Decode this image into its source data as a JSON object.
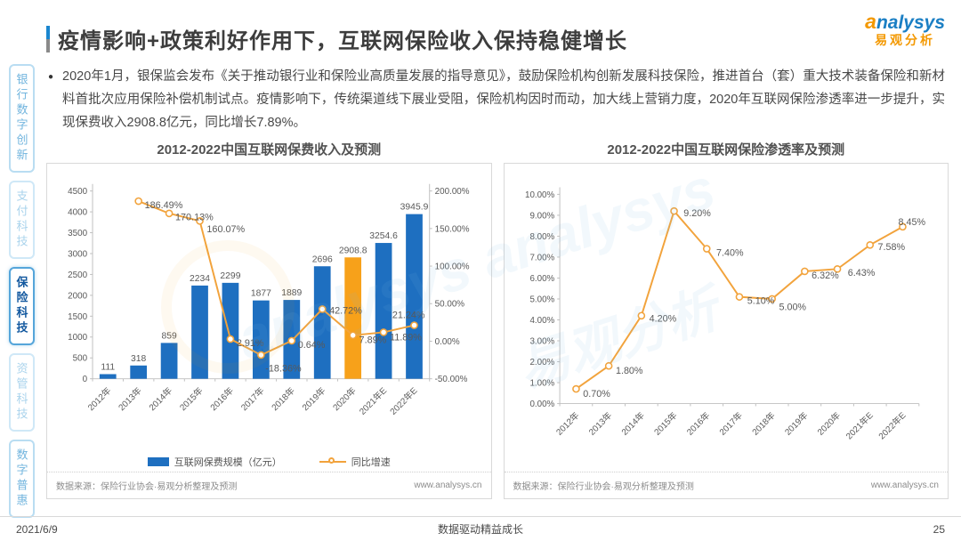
{
  "header": {
    "title": "疫情影响+政策利好作用下，互联网保险收入保持稳健增长",
    "logo": {
      "en": "analysys",
      "cn": "易观分析"
    }
  },
  "sidebar": {
    "items": [
      {
        "label": "银行数字创新",
        "active": false,
        "tone": "normal"
      },
      {
        "label": "支付科技",
        "active": false,
        "tone": "pale"
      },
      {
        "label": "保险科技",
        "active": true,
        "tone": "active"
      },
      {
        "label": "资管科技",
        "active": false,
        "tone": "pale"
      },
      {
        "label": "数字普惠",
        "active": false,
        "tone": "normal"
      }
    ]
  },
  "intro": {
    "bullet": "●",
    "text": "2020年1月，银保监会发布《关于推动银行业和保险业高质量发展的指导意见》，鼓励保险机构创新发展科技保险，推进首台（套）重大技术装备保险和新材料首批次应用保险补偿机制试点。疫情影响下，传统渠道线下展业受阻，保险机构因时而动，加大线上营销力度，2020年互联网保险渗透率进一步提升，实现保费收入2908.8亿元，同比增长7.89%。"
  },
  "chart_data": [
    {
      "type": "bar",
      "title": "2012-2022中国互联网保费收入及预测",
      "categories": [
        "2012年",
        "2013年",
        "2014年",
        "2015年",
        "2016年",
        "2017年",
        "2018年",
        "2019年",
        "2020年",
        "2021年E",
        "2022年E"
      ],
      "series": [
        {
          "name": "互联网保费规模（亿元）",
          "kind": "bar",
          "axis": "left",
          "values": [
            111,
            318,
            859,
            2234,
            2299,
            1877,
            1889,
            2696,
            2908.8,
            3254.6,
            3945.9
          ],
          "labels": [
            "111",
            "318",
            "859",
            "2234",
            "2299",
            "1877",
            "1889",
            "2696",
            "2908.8",
            "3254.6",
            "3945.9"
          ],
          "color": "#1e6fc0",
          "highlight_index": 8,
          "highlight_color": "#f7a11a"
        },
        {
          "name": "同比增速",
          "kind": "line",
          "axis": "right",
          "values": [
            null,
            186.49,
            170.13,
            160.07,
            2.91,
            -18.36,
            0.64,
            42.72,
            7.89,
            11.89,
            21.24
          ],
          "labels": [
            null,
            "186.49%",
            "170.13%",
            "160.07%",
            "2.91%",
            "-18.36%",
            "0.64%",
            "42.72%",
            "7.89%",
            "11.89%",
            "21.24%"
          ],
          "label_offsets": [
            null,
            [
              7,
              4
            ],
            [
              7,
              4
            ],
            [
              8,
              9
            ],
            [
              7,
              4
            ],
            [
              5,
              15
            ],
            [
              7,
              4
            ],
            [
              8,
              1
            ],
            [
              7,
              5
            ],
            [
              7,
              5
            ],
            [
              -25,
              -12
            ]
          ],
          "color": "#f2a33c"
        }
      ],
      "axis_left": {
        "min": 0,
        "max": 4500,
        "tick_values": [
          0,
          500,
          1000,
          1500,
          2000,
          2500,
          3000,
          3500,
          4000,
          4500
        ],
        "tick_labels": [
          "0",
          "500",
          "1000",
          "1500",
          "2000",
          "2500",
          "3000",
          "3500",
          "4000",
          "4500"
        ]
      },
      "axis_right": {
        "min": -50,
        "max": 200,
        "tick_values": [
          -50,
          0,
          50,
          100,
          150,
          200
        ],
        "tick_labels": [
          "-50.00%",
          "0.00%",
          "50.00%",
          "100.00%",
          "150.00%",
          "200.00%"
        ]
      },
      "legend": [
        {
          "label": "互联网保费规模（亿元）",
          "kind": "bar",
          "color": "#1e6fc0"
        },
        {
          "label": "同比增速",
          "kind": "line",
          "color": "#f2a33c"
        }
      ],
      "grid": false,
      "legend_position": "bottom"
    },
    {
      "type": "line",
      "title": "2012-2022中国互联网保险渗透率及预测",
      "categories": [
        "2012年",
        "2013年",
        "2014年",
        "2015年",
        "2016年",
        "2017年",
        "2018年",
        "2019年",
        "2020年",
        "2021年E",
        "2022年E"
      ],
      "series": [
        {
          "kind": "line",
          "axis": "left",
          "values": [
            0.7,
            1.8,
            4.2,
            9.2,
            7.4,
            5.1,
            5.0,
            6.32,
            6.43,
            7.58,
            8.45
          ],
          "labels": [
            "0.70%",
            "1.80%",
            "4.20%",
            "9.20%",
            "7.40%",
            "5.10%",
            "5.00%",
            "6.32%",
            "6.43%",
            "7.58%",
            "8.45%"
          ],
          "label_offsets": [
            [
              8,
              5
            ],
            [
              8,
              5
            ],
            [
              9,
              3
            ],
            [
              11,
              2
            ],
            [
              11,
              4
            ],
            [
              9,
              4
            ],
            [
              8,
              9
            ],
            [
              8,
              4
            ],
            [
              12,
              4
            ],
            [
              9,
              2
            ],
            [
              -5,
              -6
            ]
          ],
          "color": "#f2a33c"
        }
      ],
      "axis_left": {
        "min": 0,
        "max": 10,
        "tick_values": [
          0,
          1,
          2,
          3,
          4,
          5,
          6,
          7,
          8,
          9,
          10
        ],
        "tick_labels": [
          "0.00%",
          "1.00%",
          "2.00%",
          "3.00%",
          "4.00%",
          "5.00%",
          "6.00%",
          "7.00%",
          "8.00%",
          "9.00%",
          "10.00%"
        ]
      },
      "axis_right": null,
      "legend": [],
      "grid": false
    }
  ],
  "sources": {
    "left": {
      "source": "数据来源：保险行业协会·易观分析整理及预测",
      "site": "www.analysys.cn"
    },
    "right": {
      "source": "数据来源：保险行业协会·易观分析整理及预测",
      "site": "www.analysys.cn"
    }
  },
  "watermark": {
    "en": "analysys",
    "cn": "易观分析"
  },
  "footer": {
    "date": "2021/6/9",
    "slogan": "数据驱动精益成长",
    "page": "25"
  }
}
